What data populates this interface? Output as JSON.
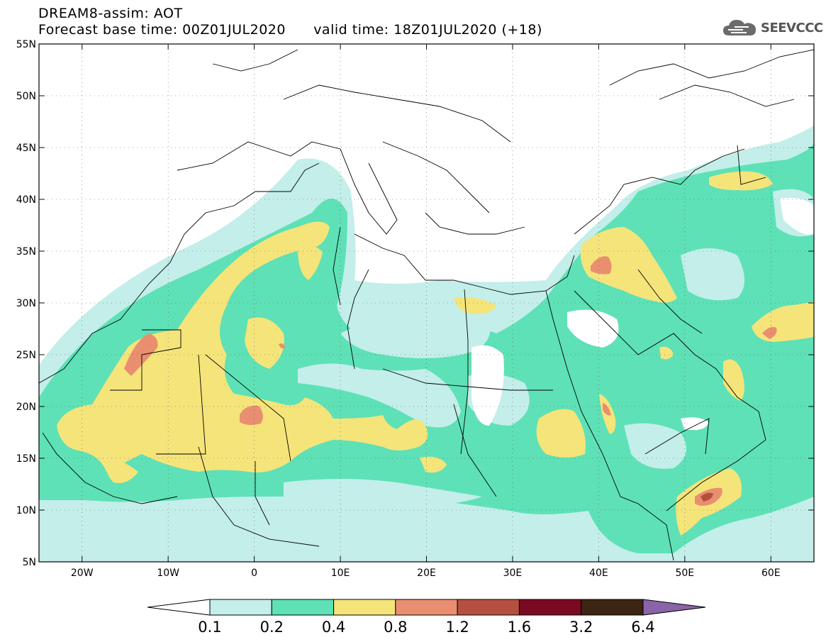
{
  "header": {
    "title_line1": "DREAM8-assim: AOT",
    "title_line2": "Forecast base time: 00Z01JUL2020      valid time: 18Z01JUL2020 (+18)",
    "logo_text": "SEEVCCC"
  },
  "map": {
    "lat_labels": [
      "55N",
      "50N",
      "45N",
      "40N",
      "35N",
      "30N",
      "25N",
      "20N",
      "15N",
      "10N",
      "5N"
    ],
    "lon_labels": [
      "20W",
      "10W",
      "0",
      "10E",
      "20E",
      "30E",
      "40E",
      "50E",
      "60E"
    ]
  },
  "legend": {
    "values": [
      "0.1",
      "0.2",
      "0.4",
      "0.8",
      "1.2",
      "1.6",
      "3.2",
      "6.4"
    ],
    "colors": [
      "#ffffff",
      "#c3eeea",
      "#5ee1b6",
      "#f5e47a",
      "#e98f70",
      "#b5503f",
      "#7a0a22",
      "#3c2512",
      "#8a64a8"
    ]
  }
}
